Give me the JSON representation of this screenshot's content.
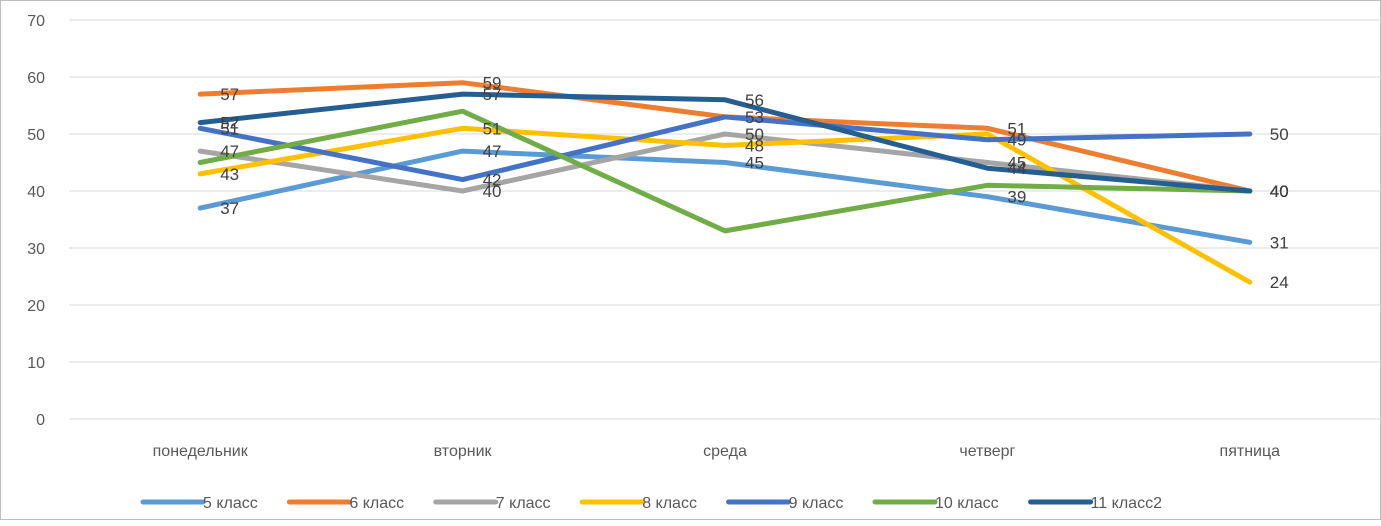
{
  "chart_data": {
    "type": "line",
    "title": "",
    "xlabel": "",
    "ylabel": "",
    "ylim": [
      0,
      70
    ],
    "yticks": [
      0,
      10,
      20,
      30,
      40,
      50,
      60,
      70
    ],
    "grid": true,
    "legend_position": "bottom",
    "categories": [
      "понедельник",
      "вторник",
      "среда",
      "четверг",
      "пятница"
    ],
    "series": [
      {
        "name": "5 класс",
        "color": "#5b9bd5",
        "values": [
          37,
          47,
          45,
          39,
          31
        ],
        "labels": [
          "37",
          "47",
          "45",
          "39",
          "31"
        ]
      },
      {
        "name": "6 класс",
        "color": "#ed7d31",
        "values": [
          57,
          59,
          53,
          51,
          40
        ],
        "labels": [
          "57",
          "59",
          "",
          "51",
          "40"
        ]
      },
      {
        "name": "7 класс",
        "color": "#a5a5a5",
        "values": [
          47,
          40,
          50,
          45,
          40
        ],
        "labels": [
          "47",
          "40",
          "50",
          "45",
          "40"
        ]
      },
      {
        "name": "8 класс",
        "color": "#ffc000",
        "values": [
          43,
          51,
          48,
          50,
          24
        ],
        "labels": [
          "43",
          "51",
          "48",
          "",
          "24"
        ]
      },
      {
        "name": "9 класс",
        "color": "#4472c4",
        "values": [
          51,
          42,
          53,
          49,
          50
        ],
        "labels": [
          "51",
          "42",
          "53",
          "49",
          "50"
        ]
      },
      {
        "name": "10 класс",
        "color": "#70ad47",
        "values": [
          45,
          54,
          33,
          41,
          40
        ],
        "labels": [
          "",
          "",
          "",
          "",
          "40"
        ]
      },
      {
        "name": "11 класс2",
        "color": "#255e91",
        "values": [
          52,
          57,
          56,
          44,
          40
        ],
        "labels": [
          "52",
          "57",
          "56",
          "44",
          "40"
        ]
      }
    ]
  }
}
